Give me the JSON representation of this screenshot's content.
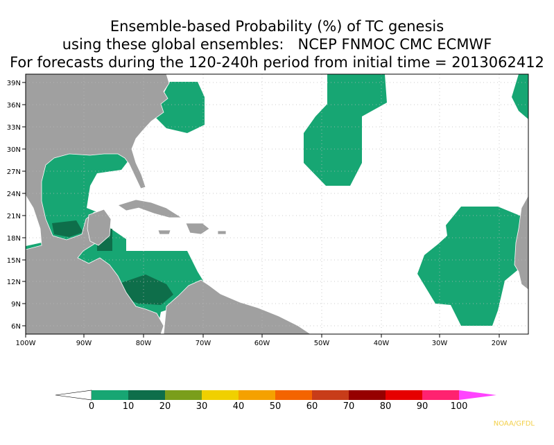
{
  "title": {
    "line1": "Ensemble-based Probability (%) of TC genesis",
    "line2": "using these global ensembles:   NCEP FNMOC CMC ECMWF",
    "line3": "For forecasts during the 120-240h period from initial time = 2013062412"
  },
  "map": {
    "lon_range": [
      -100,
      -15
    ],
    "lat_range": [
      5,
      40
    ],
    "x_ticks": [
      "100W",
      "90W",
      "80W",
      "70W",
      "60W",
      "50W",
      "40W",
      "30W",
      "20W"
    ],
    "y_ticks": [
      "39N",
      "36N",
      "33N",
      "30N",
      "27N",
      "24N",
      "21N",
      "18N",
      "15N",
      "12N",
      "9N",
      "6N"
    ],
    "colors": {
      "land": "#a0a0a0",
      "ocean": "#ffffff",
      "grid": "#bbbbbb"
    }
  },
  "colorbar": {
    "labels": [
      "0",
      "10",
      "20",
      "30",
      "40",
      "50",
      "60",
      "70",
      "80",
      "90",
      "100"
    ],
    "colors": [
      "#17a673",
      "#0e6e4a",
      "#7a9e1b",
      "#f0d000",
      "#f5a100",
      "#f46400",
      "#c83c19",
      "#960000",
      "#e60000",
      "#ff2270"
    ],
    "under_color": "#ffffff",
    "over_color": "#ff44ff"
  },
  "credit": "NOAA/GFDL"
}
